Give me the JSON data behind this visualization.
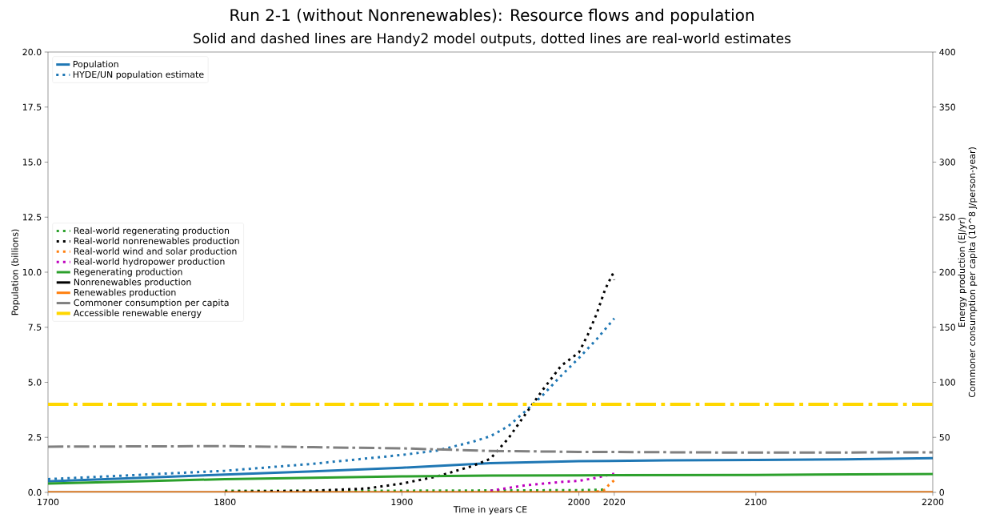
{
  "chart_data": {
    "type": "line",
    "title": "Run 2-1 (without Nonrenewables): Resource flows and population",
    "subtitle": "Solid and dashed lines are Handy2 model outputs, dotted lines are real-world estimates",
    "xlabel": "Time in years CE",
    "ylabel": "Population (billions)",
    "y2label": "Energy production (EJ/yr)\nCommoner consumption per capita (10^8 J/person-year)",
    "xlim": [
      1700,
      2200
    ],
    "xticks": [
      1700,
      1800,
      1900,
      2000,
      2020,
      2100,
      2200
    ],
    "ylim": [
      0,
      20
    ],
    "yticks": [
      {
        "value": 0,
        "label": "0.0"
      },
      {
        "value": 2.5,
        "label": "2.5"
      },
      {
        "value": 5,
        "label": "5.0"
      },
      {
        "value": 7.5,
        "label": "7.5"
      },
      {
        "value": 10,
        "label": "10.0"
      },
      {
        "value": 12.5,
        "label": "12.5"
      },
      {
        "value": 15,
        "label": "15.0"
      },
      {
        "value": 17.5,
        "label": "17.5"
      },
      {
        "value": 20,
        "label": "20.0"
      }
    ],
    "y2lim": [
      0,
      400
    ],
    "y2ticks": [
      0,
      50,
      100,
      150,
      200,
      250,
      300,
      350,
      400
    ],
    "legend": "top left",
    "series": [
      {
        "name": "Population",
        "color": "#1f77b4",
        "line_style": "solid",
        "x": [
          1700,
          1750,
          1800,
          1850,
          1900,
          1950,
          2000,
          2050,
          2100,
          2150,
          2200
        ],
        "values": [
          0.5,
          0.65,
          0.81,
          0.95,
          1.12,
          1.33,
          1.42,
          1.45,
          1.47,
          1.5,
          1.55
        ]
      },
      {
        "name": "HYDE/UN population estimate",
        "color": "#1f77b4",
        "line_style": "dotted",
        "x": [
          1700,
          1750,
          1800,
          1850,
          1900,
          1920,
          1940,
          1950,
          1960,
          1970,
          1980,
          1990,
          2000,
          2010,
          2020
        ],
        "values": [
          0.6,
          0.79,
          0.98,
          1.3,
          1.7,
          1.9,
          2.3,
          2.55,
          3.0,
          3.7,
          4.45,
          5.3,
          6.1,
          6.95,
          7.9
        ]
      },
      {
        "name": "Real-world regenerating production",
        "color": "#2ca02c",
        "line_style": "dotted",
        "axis": "y2",
        "x": [
          1800,
          1900,
          2000,
          2015
        ],
        "values": [
          1.5,
          1.5,
          2,
          2.5
        ]
      },
      {
        "name": "Real-world nonrenewables production",
        "color": "#000000",
        "line_style": "dotted",
        "axis": "y2",
        "x": [
          1800,
          1850,
          1880,
          1900,
          1920,
          1940,
          1950,
          1960,
          1970,
          1980,
          1990,
          2000,
          2005,
          2010,
          2015,
          2019,
          2020
        ],
        "values": [
          0.5,
          1.5,
          3.5,
          8,
          14.5,
          24,
          30.5,
          48.7,
          71.5,
          94,
          115,
          127,
          143,
          162,
          185,
          198,
          193
        ]
      },
      {
        "name": "Real-world wind and solar production",
        "color": "#ff7f0e",
        "line_style": "dotted",
        "axis": "y2",
        "x": [
          2010,
          2015,
          2017,
          2020
        ],
        "values": [
          0.5,
          2.5,
          7,
          11
        ]
      },
      {
        "name": "Real-world hydropower production",
        "color": "#bf00bf",
        "line_style": "dotted",
        "axis": "y2",
        "x": [
          1950,
          1960,
          1970,
          1980,
          1990,
          2000,
          2010,
          2020
        ],
        "values": [
          1.5,
          4,
          6.5,
          8,
          9.5,
          10.4,
          13.3,
          17
        ]
      },
      {
        "name": "Regenerating production",
        "color": "#2ca02c",
        "line_style": "solid",
        "axis": "y2",
        "x": [
          1700,
          1750,
          1800,
          1850,
          1900,
          1950,
          2000,
          2100,
          2200
        ],
        "values": [
          8,
          10,
          12,
          13.3,
          14.5,
          15.3,
          15.5,
          15.8,
          16.7
        ]
      },
      {
        "name": "Nonrenewables production",
        "color": "#000000",
        "line_style": "solid",
        "axis": "y2",
        "x": [
          1700,
          2200
        ],
        "values": [
          0,
          0
        ]
      },
      {
        "name": "Renewables production",
        "color": "#ff7f0e",
        "line_style": "solid",
        "axis": "y2",
        "x": [
          1700,
          2200
        ],
        "values": [
          0,
          0
        ]
      },
      {
        "name": "Commoner consumption per capita",
        "color": "#808080",
        "line_style": "dashdot",
        "axis": "y2",
        "x": [
          1700,
          1800,
          1850,
          1900,
          1950,
          2000,
          2100,
          2200
        ],
        "values": [
          41.5,
          42,
          41,
          40,
          37.6,
          36.8,
          36.1,
          36.4
        ]
      },
      {
        "name": "Accessible renewable energy",
        "color": "#ffd700",
        "line_style": "dashdot",
        "axis": "y2",
        "x": [
          1700,
          2200
        ],
        "values": [
          80,
          80
        ]
      }
    ]
  }
}
